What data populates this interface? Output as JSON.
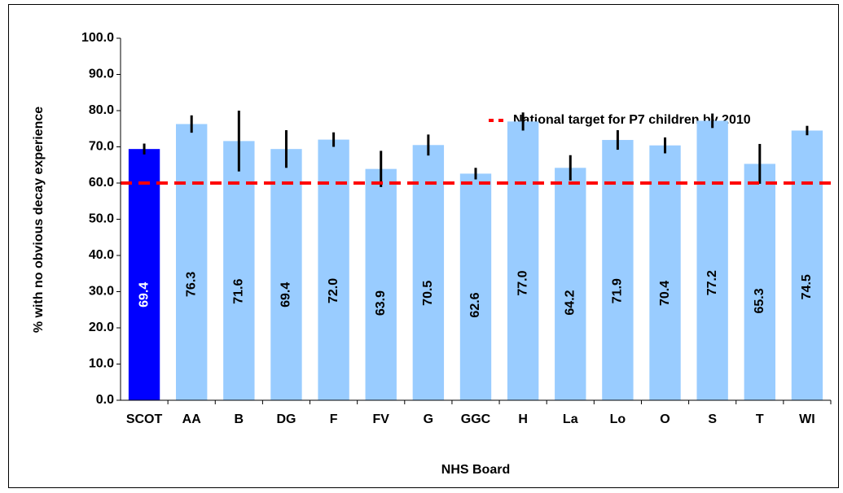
{
  "chart_data": {
    "type": "bar",
    "x_label": "NHS Board",
    "y_label": "% with no obvious decay experience",
    "categories": [
      "SCOT",
      "AA",
      "B",
      "DG",
      "F",
      "FV",
      "G",
      "GGC",
      "H",
      "La",
      "Lo",
      "O",
      "S",
      "T",
      "WI"
    ],
    "values": [
      69.4,
      76.3,
      71.6,
      69.4,
      72.0,
      63.9,
      70.5,
      62.6,
      77.0,
      64.2,
      71.9,
      70.4,
      77.2,
      65.3,
      74.5
    ],
    "value_labels": [
      "69.4",
      "76.3",
      "71.6",
      "69.4",
      "72.0",
      "63.9",
      "70.5",
      "62.6",
      "77.0",
      "64.2",
      "71.9",
      "70.4",
      "77.2",
      "65.3",
      "74.5"
    ],
    "errors": [
      1.5,
      2.4,
      8.4,
      5.2,
      2.0,
      5.0,
      2.9,
      1.6,
      2.5,
      3.5,
      2.7,
      2.2,
      2.0,
      5.5,
      1.3
    ],
    "colors": [
      "#0000ff",
      "#99ccff",
      "#99ccff",
      "#99ccff",
      "#99ccff",
      "#99ccff",
      "#99ccff",
      "#99ccff",
      "#99ccff",
      "#99ccff",
      "#99ccff",
      "#99ccff",
      "#99ccff",
      "#99ccff",
      "#99ccff"
    ],
    "error_color": "#000000",
    "ylim": [
      0,
      100
    ],
    "yticks": [
      {
        "value": 0,
        "label": "0.0"
      },
      {
        "value": 10,
        "label": "10.0"
      },
      {
        "value": 20,
        "label": "20.0"
      },
      {
        "value": 30,
        "label": "30.0"
      },
      {
        "value": 40,
        "label": "40.0"
      },
      {
        "value": 50,
        "label": "50.0"
      },
      {
        "value": 60,
        "label": "60.0"
      },
      {
        "value": 70,
        "label": "70.0"
      },
      {
        "value": 80,
        "label": "80.0"
      },
      {
        "value": 90,
        "label": "90.0"
      },
      {
        "value": 100,
        "label": "100.0"
      }
    ],
    "reference_line": {
      "value": 60,
      "label": "National target for P7 children by 2010",
      "color": "#ff0000"
    }
  }
}
